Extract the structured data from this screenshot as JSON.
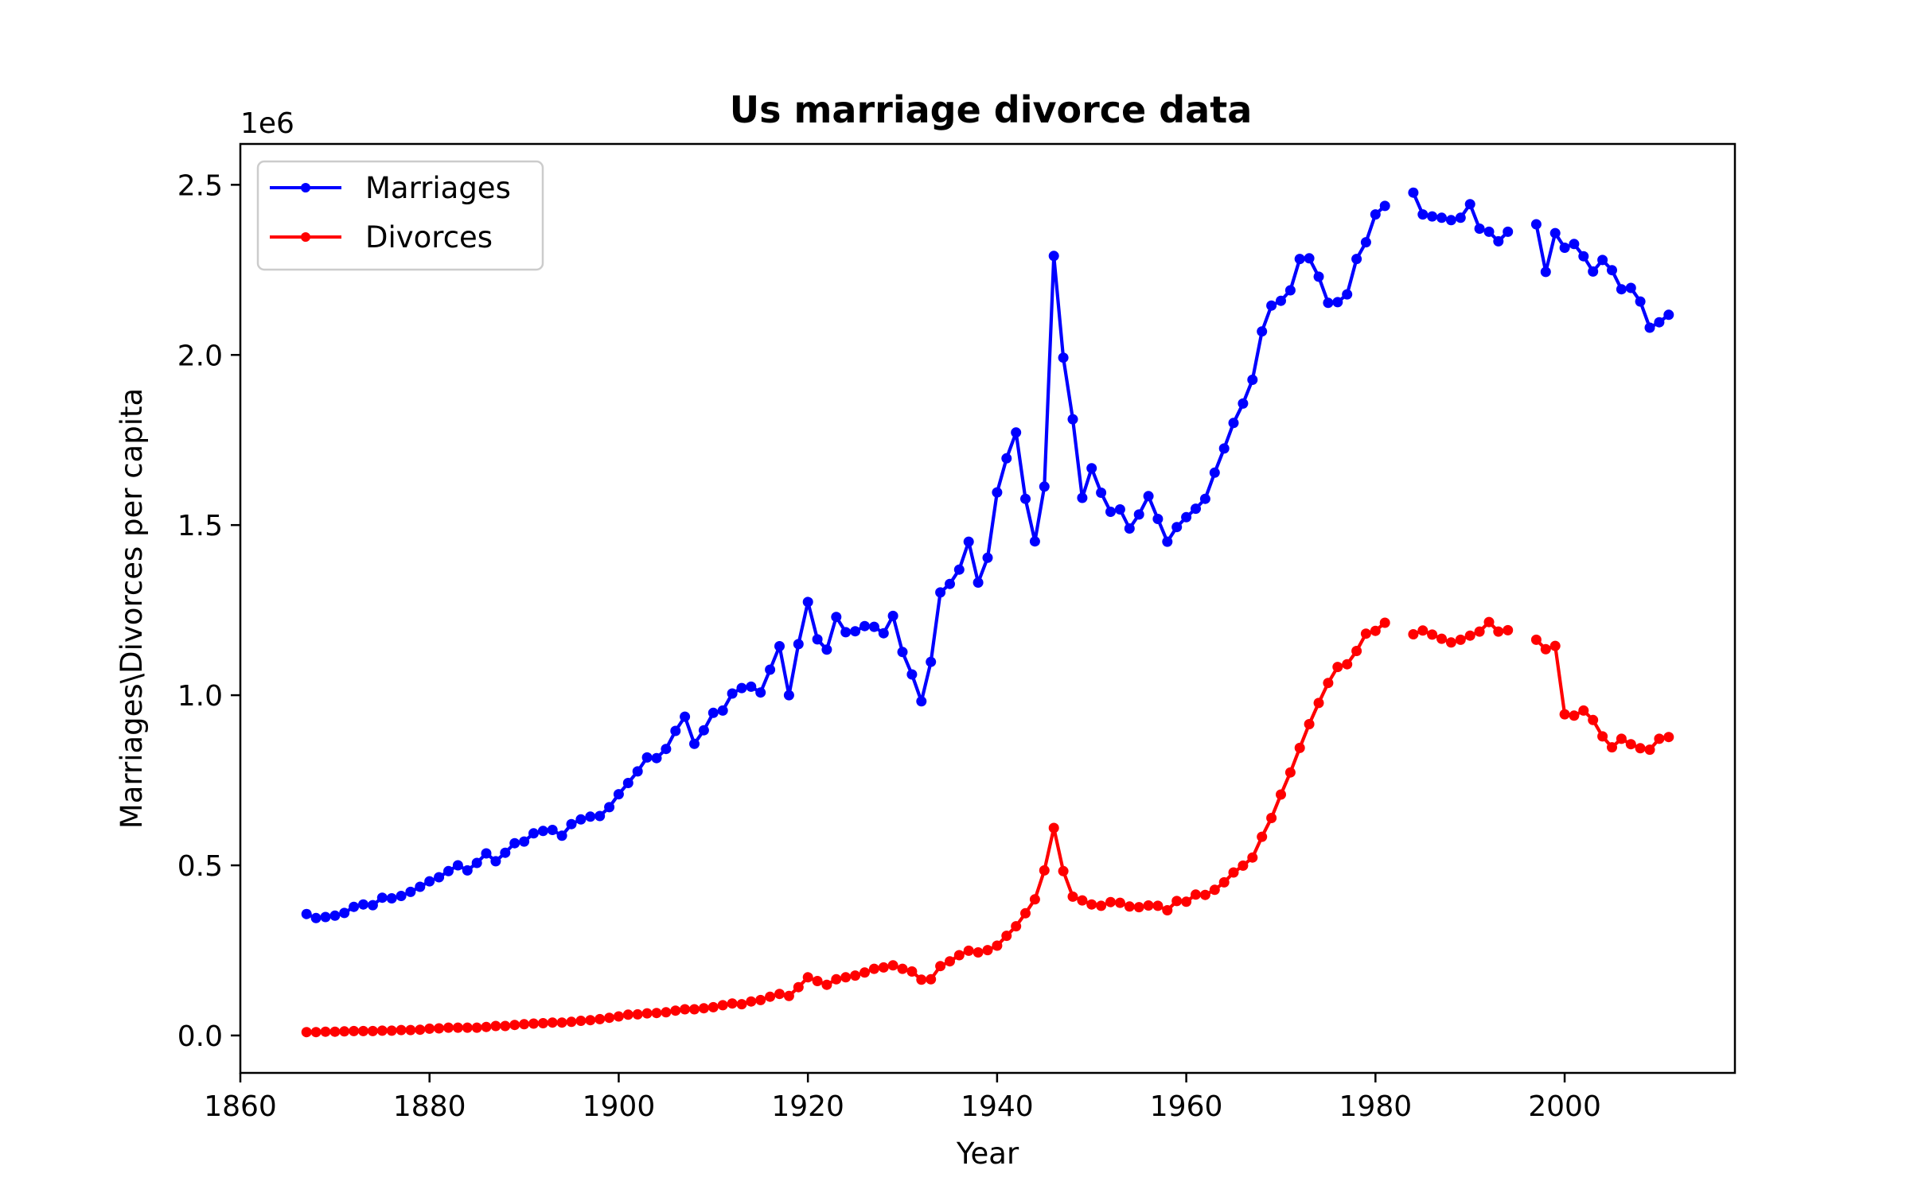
{
  "chart_data": {
    "type": "line",
    "title": "Us marriage divorce data",
    "xlabel": "Year",
    "ylabel": "Marriages\\Divorces per capita",
    "y_offset_text": "1e6",
    "xlim": [
      1860,
      2018
    ],
    "ylim": [
      -0.11,
      2.62
    ],
    "x_ticks": [
      1860,
      1880,
      1900,
      1920,
      1940,
      1960,
      1980,
      2000
    ],
    "y_ticks": [
      0.0,
      0.5,
      1.0,
      1.5,
      2.0,
      2.5
    ],
    "y_tick_labels": [
      "0.0",
      "0.5",
      "1.0",
      "1.5",
      "2.0",
      "2.5"
    ],
    "legend_position": "top-left",
    "grid": false,
    "series": [
      {
        "name": "Marriages",
        "color": "#0000ff",
        "x": [
          1867,
          1868,
          1869,
          1870,
          1871,
          1872,
          1873,
          1874,
          1875,
          1876,
          1877,
          1878,
          1879,
          1880,
          1881,
          1882,
          1883,
          1884,
          1885,
          1886,
          1887,
          1888,
          1889,
          1890,
          1891,
          1892,
          1893,
          1894,
          1895,
          1896,
          1897,
          1898,
          1899,
          1900,
          1901,
          1902,
          1903,
          1904,
          1905,
          1906,
          1907,
          1908,
          1909,
          1910,
          1911,
          1912,
          1913,
          1914,
          1915,
          1916,
          1917,
          1918,
          1919,
          1920,
          1921,
          1922,
          1923,
          1924,
          1925,
          1926,
          1927,
          1928,
          1929,
          1930,
          1931,
          1932,
          1933,
          1934,
          1935,
          1936,
          1937,
          1938,
          1939,
          1940,
          1941,
          1942,
          1943,
          1944,
          1945,
          1946,
          1947,
          1948,
          1949,
          1950,
          1951,
          1952,
          1953,
          1954,
          1955,
          1956,
          1957,
          1958,
          1959,
          1960,
          1961,
          1962,
          1963,
          1964,
          1965,
          1966,
          1967,
          1968,
          1969,
          1970,
          1971,
          1972,
          1973,
          1974,
          1975,
          1976,
          1977,
          1978,
          1979,
          1980,
          1981,
          1982,
          1983,
          1984,
          1985,
          1986,
          1987,
          1988,
          1989,
          1990,
          1991,
          1992,
          1993,
          1994,
          1995,
          1996,
          1997,
          1998,
          1999,
          2000,
          2001,
          2002,
          2003,
          2004,
          2005,
          2006,
          2007,
          2008,
          2009,
          2010,
          2011
        ],
        "y": [
          0.357,
          0.345,
          0.348,
          0.352,
          0.36,
          0.378,
          0.385,
          0.383,
          0.405,
          0.403,
          0.41,
          0.422,
          0.437,
          0.453,
          0.465,
          0.483,
          0.5,
          0.485,
          0.507,
          0.535,
          0.512,
          0.537,
          0.565,
          0.57,
          0.594,
          0.601,
          0.604,
          0.587,
          0.621,
          0.635,
          0.643,
          0.645,
          0.671,
          0.709,
          0.742,
          0.776,
          0.817,
          0.815,
          0.842,
          0.895,
          0.937,
          0.857,
          0.897,
          0.948,
          0.955,
          1.005,
          1.021,
          1.025,
          1.008,
          1.075,
          1.144,
          1.0,
          1.15,
          1.274,
          1.164,
          1.134,
          1.23,
          1.185,
          1.188,
          1.203,
          1.201,
          1.182,
          1.233,
          1.127,
          1.061,
          0.982,
          1.098,
          1.302,
          1.327,
          1.369,
          1.451,
          1.331,
          1.404,
          1.596,
          1.696,
          1.772,
          1.577,
          1.452,
          1.613,
          2.291,
          1.992,
          1.811,
          1.58,
          1.667,
          1.595,
          1.539,
          1.546,
          1.49,
          1.531,
          1.585,
          1.518,
          1.451,
          1.494,
          1.523,
          1.548,
          1.577,
          1.654,
          1.725,
          1.8,
          1.857,
          1.927,
          2.069,
          2.145,
          2.159,
          2.19,
          2.282,
          2.284,
          2.23,
          2.153,
          2.155,
          2.178,
          2.282,
          2.331,
          2.413,
          2.438,
          null,
          null,
          2.477,
          2.413,
          2.407,
          2.403,
          2.396,
          2.403,
          2.443,
          2.371,
          2.362,
          2.334,
          2.362,
          null,
          null,
          2.384,
          2.244,
          2.358,
          2.315,
          2.326,
          2.29,
          2.245,
          2.279,
          2.249,
          2.193,
          2.197,
          2.157,
          2.08,
          2.096,
          2.118
        ]
      },
      {
        "name": "Divorces",
        "color": "#ff0000",
        "x": [
          1867,
          1868,
          1869,
          1870,
          1871,
          1872,
          1873,
          1874,
          1875,
          1876,
          1877,
          1878,
          1879,
          1880,
          1881,
          1882,
          1883,
          1884,
          1885,
          1886,
          1887,
          1888,
          1889,
          1890,
          1891,
          1892,
          1893,
          1894,
          1895,
          1896,
          1897,
          1898,
          1899,
          1900,
          1901,
          1902,
          1903,
          1904,
          1905,
          1906,
          1907,
          1908,
          1909,
          1910,
          1911,
          1912,
          1913,
          1914,
          1915,
          1916,
          1917,
          1918,
          1919,
          1920,
          1921,
          1922,
          1923,
          1924,
          1925,
          1926,
          1927,
          1928,
          1929,
          1930,
          1931,
          1932,
          1933,
          1934,
          1935,
          1936,
          1937,
          1938,
          1939,
          1940,
          1941,
          1942,
          1943,
          1944,
          1945,
          1946,
          1947,
          1948,
          1949,
          1950,
          1951,
          1952,
          1953,
          1954,
          1955,
          1956,
          1957,
          1958,
          1959,
          1960,
          1961,
          1962,
          1963,
          1964,
          1965,
          1966,
          1967,
          1968,
          1969,
          1970,
          1971,
          1972,
          1973,
          1974,
          1975,
          1976,
          1977,
          1978,
          1979,
          1980,
          1981,
          1982,
          1983,
          1984,
          1985,
          1986,
          1987,
          1988,
          1989,
          1990,
          1991,
          1992,
          1993,
          1994,
          1995,
          1996,
          1997,
          1998,
          1999,
          2000,
          2001,
          2002,
          2003,
          2004,
          2005,
          2006,
          2007,
          2008,
          2009,
          2010,
          2011
        ],
        "y": [
          0.01,
          0.01,
          0.011,
          0.011,
          0.012,
          0.013,
          0.013,
          0.013,
          0.014,
          0.014,
          0.016,
          0.016,
          0.017,
          0.02,
          0.021,
          0.023,
          0.023,
          0.023,
          0.023,
          0.025,
          0.028,
          0.028,
          0.031,
          0.033,
          0.035,
          0.036,
          0.038,
          0.038,
          0.04,
          0.043,
          0.045,
          0.048,
          0.052,
          0.056,
          0.061,
          0.062,
          0.065,
          0.066,
          0.068,
          0.073,
          0.077,
          0.077,
          0.08,
          0.083,
          0.089,
          0.094,
          0.092,
          0.1,
          0.104,
          0.114,
          0.122,
          0.116,
          0.142,
          0.171,
          0.16,
          0.149,
          0.165,
          0.171,
          0.176,
          0.185,
          0.196,
          0.2,
          0.206,
          0.196,
          0.188,
          0.164,
          0.165,
          0.204,
          0.218,
          0.236,
          0.249,
          0.244,
          0.251,
          0.264,
          0.293,
          0.321,
          0.359,
          0.4,
          0.485,
          0.61,
          0.483,
          0.408,
          0.397,
          0.385,
          0.381,
          0.392,
          0.39,
          0.379,
          0.377,
          0.382,
          0.381,
          0.368,
          0.395,
          0.393,
          0.414,
          0.413,
          0.428,
          0.45,
          0.479,
          0.499,
          0.523,
          0.584,
          0.639,
          0.708,
          0.773,
          0.845,
          0.915,
          0.977,
          1.036,
          1.083,
          1.091,
          1.13,
          1.181,
          1.189,
          1.213,
          null,
          null,
          1.179,
          1.19,
          1.178,
          1.166,
          1.155,
          1.163,
          1.175,
          1.187,
          1.215,
          1.187,
          1.191,
          null,
          null,
          1.163,
          1.135,
          1.145,
          0.944,
          0.94,
          0.955,
          0.927,
          0.879,
          0.847,
          0.872,
          0.856,
          0.844,
          0.84,
          0.872,
          0.877
        ]
      }
    ]
  }
}
